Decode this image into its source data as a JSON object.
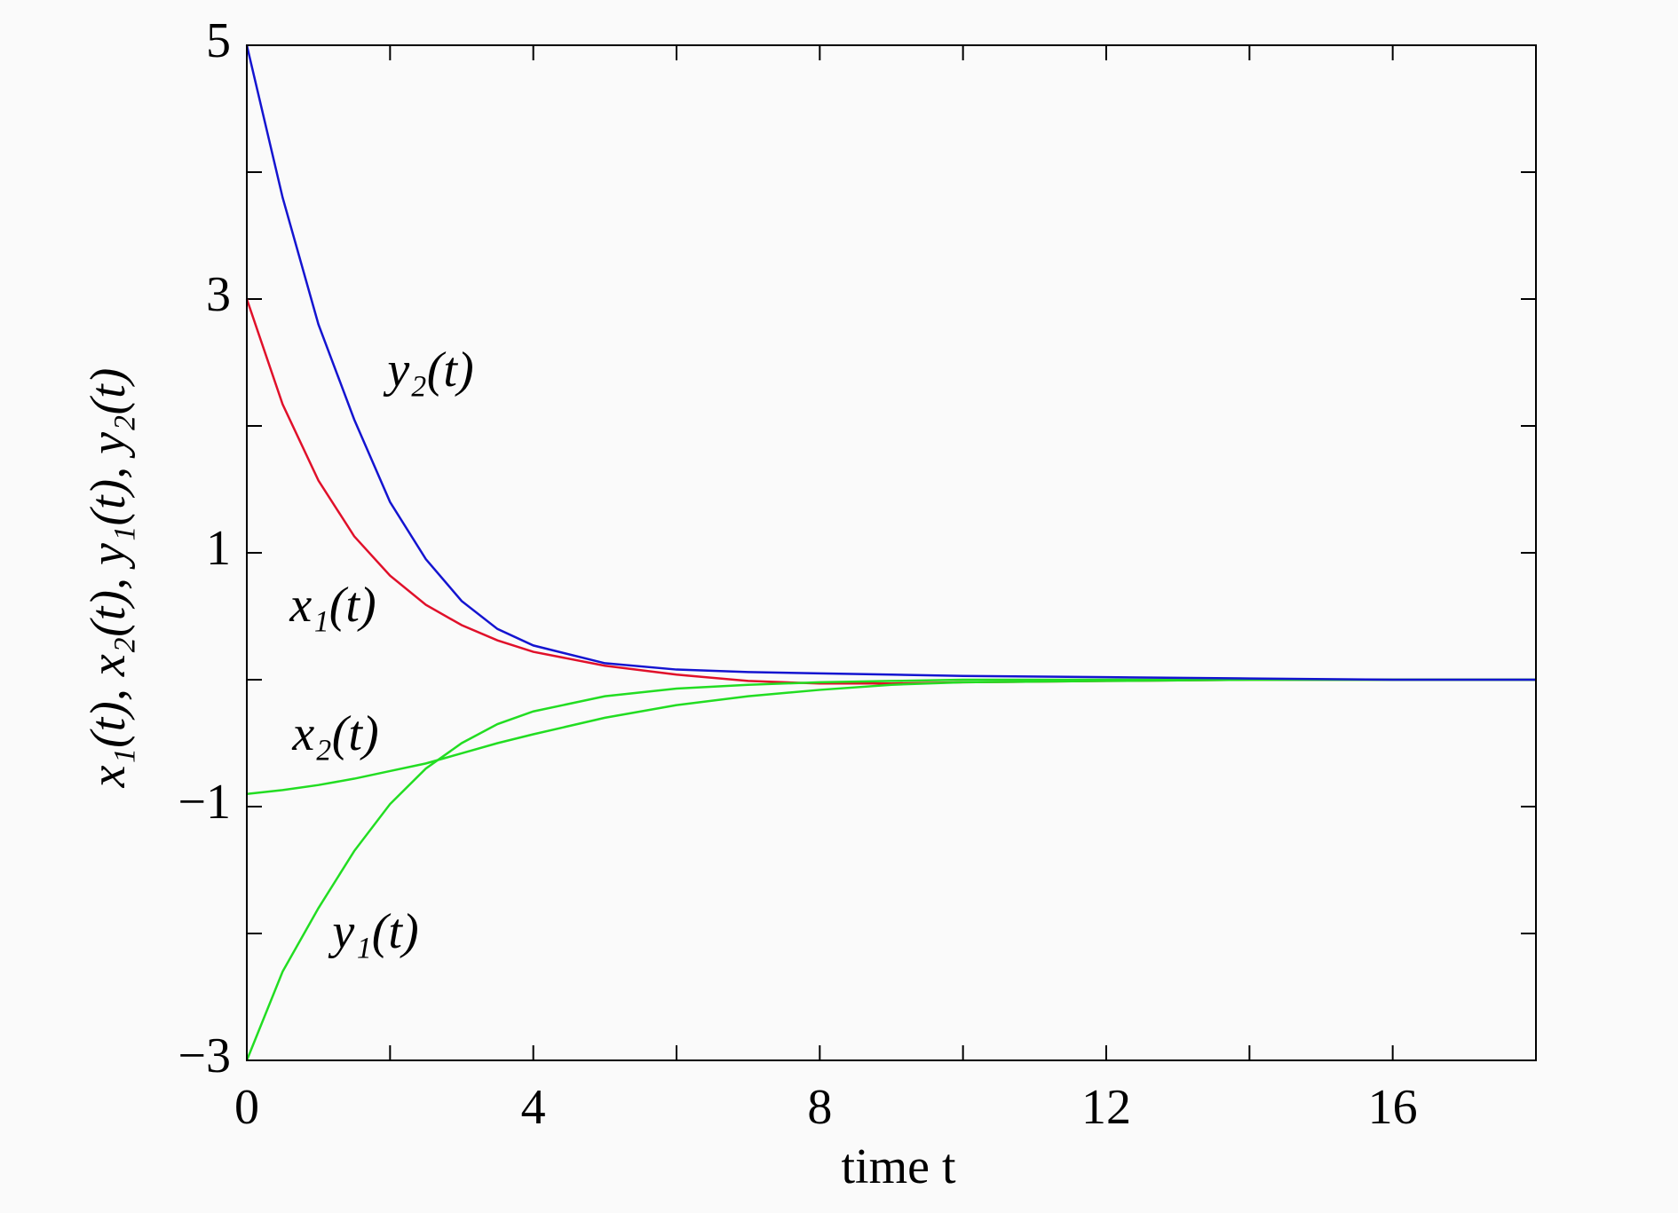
{
  "chart_data": {
    "type": "line",
    "x_label": "time t",
    "y_label": "x₁(t), x₂(t), y₁(t), y₂(t)",
    "x": [
      0,
      0.5,
      1,
      1.5,
      2,
      2.5,
      3,
      3.5,
      4,
      5,
      6,
      7,
      8,
      9,
      10,
      12,
      14,
      16,
      18
    ],
    "series": [
      {
        "name": "x₁(t)",
        "color": "#e0102a",
        "values": [
          3,
          2.17,
          1.57,
          1.13,
          0.82,
          0.59,
          0.43,
          0.31,
          0.22,
          0.11,
          0.04,
          -0.01,
          -0.03,
          -0.03,
          -0.02,
          -0.01,
          0,
          0,
          0
        ]
      },
      {
        "name": "x₂(t)",
        "color": "#22dd22",
        "values": [
          -0.9,
          -0.87,
          -0.83,
          -0.78,
          -0.72,
          -0.66,
          -0.58,
          -0.5,
          -0.43,
          -0.3,
          -0.2,
          -0.13,
          -0.08,
          -0.04,
          -0.02,
          -0.01,
          0,
          0,
          0
        ]
      },
      {
        "name": "y₁(t)",
        "color": "#22dd22",
        "values": [
          -3,
          -2.3,
          -1.8,
          -1.35,
          -0.98,
          -0.7,
          -0.5,
          -0.35,
          -0.25,
          -0.13,
          -0.07,
          -0.04,
          -0.02,
          -0.01,
          0,
          0,
          0,
          0,
          0
        ]
      },
      {
        "name": "y₂(t)",
        "color": "#1414d0",
        "values": [
          5,
          3.8,
          2.8,
          2.05,
          1.4,
          0.95,
          0.62,
          0.4,
          0.27,
          0.13,
          0.08,
          0.06,
          0.05,
          0.04,
          0.03,
          0.02,
          0.01,
          0,
          0
        ]
      }
    ],
    "xlim": [
      0,
      18
    ],
    "xticks": [
      0,
      4,
      8,
      12,
      16
    ],
    "xminorticks": [
      2,
      6,
      10,
      14
    ],
    "ylim": [
      -3,
      5
    ],
    "yticks": [
      {
        "value": -3,
        "label": "−3"
      },
      {
        "value": -1,
        "label": "−1"
      },
      1,
      3,
      5
    ],
    "yminorticks": [
      -2,
      0,
      2,
      4
    ],
    "grid": false
  }
}
